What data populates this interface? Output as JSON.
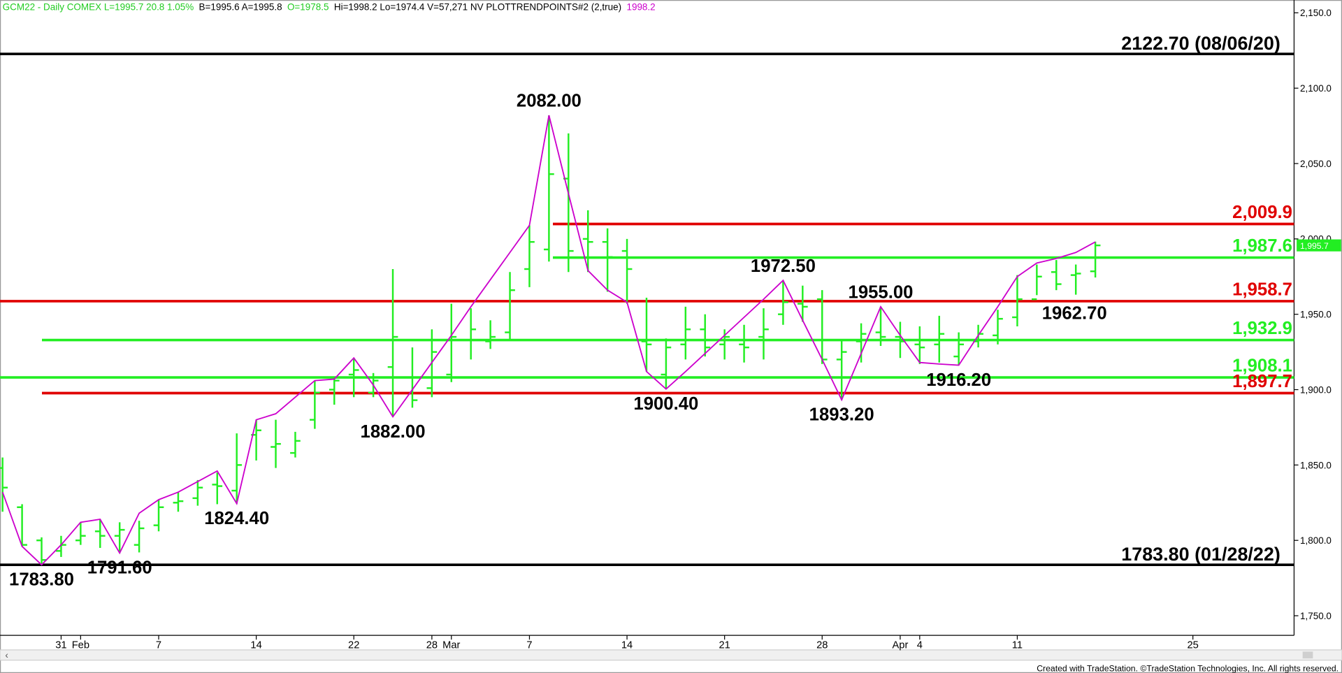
{
  "chart_data": {
    "type": "ohlc",
    "header": [
      {
        "text": "GCM22 - Daily  COMEX  L=1995.7  20.8  1.05%",
        "color": "#22cc22"
      },
      {
        "text": "B=1995.6  A=1995.8",
        "color": "#000000"
      },
      {
        "text": "O=1978.5",
        "color": "#22cc22"
      },
      {
        "text": "Hi=1998.2  Lo=1974.4  V=57,271  NV  PLOTTRENDPOINTS#2 (2,true)",
        "color": "#000000"
      },
      {
        "text": "1998.2",
        "color": "#cc00cc"
      }
    ],
    "footer": "Created with TradeStation. ©TradeStation Technologies, Inc. All rights reserved.",
    "categories": [
      null,
      null,
      null,
      "31",
      "Feb",
      null,
      null,
      null,
      "7",
      null,
      null,
      null,
      null,
      "14",
      null,
      null,
      null,
      null,
      "22",
      null,
      null,
      null,
      "28",
      "Mar",
      null,
      null,
      null,
      "7",
      null,
      null,
      null,
      null,
      "14",
      null,
      null,
      null,
      null,
      "21",
      null,
      null,
      null,
      null,
      "28",
      null,
      null,
      null,
      "Apr",
      "4",
      null,
      null,
      null,
      null,
      "11",
      null,
      null,
      null,
      null,
      null,
      null,
      null,
      null,
      "25"
    ],
    "color": "#22ee22",
    "open": [
      1848,
      1822,
      1800,
      1793,
      1800,
      1806,
      1803,
      1797,
      1810,
      1825,
      1828,
      1837,
      1833,
      1870,
      1862,
      1858,
      1880,
      1900,
      1910,
      1898,
      1915,
      1908,
      1901,
      1910,
      1933,
      1932,
      1938,
      1980,
      1993,
      2040,
      2000,
      1998,
      1992,
      1932,
      1910,
      1930,
      1940,
      1930,
      1930,
      1935,
      1950,
      1957,
      1960,
      1920,
      1932,
      1938,
      1935,
      1930,
      1930,
      1922,
      1932,
      1936,
      1948,
      1960,
      1978,
      1976,
      1978.5,
      null,
      null,
      null,
      null,
      null
    ],
    "high": [
      1855,
      1824,
      1802,
      1803,
      1812,
      1814,
      1812,
      1813,
      1827,
      1832,
      1840,
      1845,
      1871,
      1880,
      1880,
      1872,
      1906,
      1908,
      1921,
      1911,
      1980,
      1928,
      1940,
      1957,
      1954,
      1946,
      1978,
      2009,
      2082,
      2070,
      2019,
      2007,
      2000,
      1961,
      1934,
      1955,
      1950,
      1940,
      1943,
      1954,
      1972.5,
      1969,
      1966,
      1933,
      1944,
      1955,
      1945,
      1942,
      1949,
      1938,
      1943,
      1953,
      1976,
      1983,
      1986,
      1983,
      1998.2,
      null,
      null,
      null,
      null,
      null
    ],
    "low": [
      1819,
      1796,
      1783.8,
      1789,
      1797,
      1795,
      1791.6,
      1792,
      1806,
      1819,
      1823,
      1824,
      1824.4,
      1853,
      1848,
      1855,
      1874,
      1890,
      1895,
      1895,
      1882,
      1888,
      1895,
      1905,
      1920,
      1927,
      1933,
      1968,
      1985,
      1978,
      1978,
      1965,
      1957,
      1912,
      1900.4,
      1920,
      1922,
      1920,
      1918,
      1920,
      1943,
      1945,
      1917,
      1893.2,
      1918,
      1929,
      1921,
      1917,
      1918,
      1916.2,
      1928,
      1930,
      1942,
      1962.7,
      1966,
      1963,
      1974.4,
      null,
      null,
      null,
      null,
      null
    ],
    "low_value_labels": [
      null,
      null,
      null,
      null,
      null,
      null,
      null,
      null,
      null,
      null,
      null,
      null,
      null,
      null,
      null,
      null,
      null,
      null,
      null,
      null,
      null,
      null,
      null,
      null,
      null,
      null,
      null,
      null,
      null,
      null,
      null,
      null,
      null,
      null,
      null,
      null,
      null,
      null,
      null,
      null,
      null,
      null,
      null,
      null,
      null,
      null,
      null,
      null,
      null,
      null,
      null,
      null,
      null,
      "1962.70",
      null,
      null,
      null,
      null,
      null,
      null,
      null,
      null
    ],
    "close": [
      1835,
      1797,
      1787,
      1797,
      1803,
      1803,
      1807,
      1808,
      1822,
      1826,
      1835,
      1836,
      1850,
      1873,
      1864,
      1866,
      1898,
      1906,
      1913,
      1906,
      1935,
      1893,
      1925,
      1935,
      1940,
      1935,
      1966,
      1998,
      2043,
      1992,
      1998,
      1988,
      1980,
      1930,
      1928,
      1940,
      1928,
      1935,
      1928,
      1940,
      1958,
      1955,
      1920,
      1925,
      1937,
      1935,
      1932,
      1928,
      1937,
      1930,
      1937,
      1947,
      1960,
      1975,
      1970,
      1977,
      1995.7,
      null,
      null,
      null,
      null,
      null
    ],
    "pivot": {
      "color": "#cc00cc",
      "values": [
        1832,
        1796,
        1783.8,
        1797,
        1812,
        1814,
        1791.6,
        1818,
        1827,
        1832,
        1839,
        1846,
        1824.4,
        1880,
        1884,
        1895,
        1906,
        1907,
        1921,
        1903,
        1882,
        1900,
        1918,
        1936,
        1955,
        1973,
        1991,
        2009,
        2082,
        2030,
        1979,
        1966,
        1958,
        1912,
        1900.4,
        1912,
        1924,
        1936,
        1948,
        1960,
        1972.5,
        1946,
        1920,
        1893.2,
        1924,
        1955,
        1936,
        1918,
        1917,
        1916.2,
        1936,
        1955,
        1975,
        1984,
        1987,
        1991,
        1998,
        null,
        null,
        null,
        null,
        null
      ],
      "value_labels": [
        null,
        null,
        "1783.80",
        null,
        null,
        null,
        "1791.60",
        null,
        null,
        null,
        null,
        null,
        "1824.40",
        null,
        null,
        null,
        null,
        null,
        null,
        null,
        "1882.00",
        null,
        null,
        null,
        null,
        null,
        null,
        null,
        "2082.00",
        null,
        null,
        null,
        null,
        null,
        "1900.40",
        null,
        null,
        null,
        null,
        null,
        "1972.50",
        null,
        null,
        "1893.20",
        null,
        "1955.00",
        null,
        null,
        null,
        "1916.20",
        null,
        null,
        null,
        null,
        null,
        null,
        null,
        null,
        null,
        null,
        null,
        null
      ]
    },
    "levels": [
      {
        "label": "2122.70 (08/06/20)",
        "value": 2122.7,
        "color": "#000000"
      },
      {
        "label": "2,009.9",
        "value": 2009.9,
        "color": "#e00000"
      },
      {
        "label": "1,987.6",
        "value": 1987.6,
        "color": "#22ee22"
      },
      {
        "label": "1,958.7",
        "value": 1958.7,
        "color": "#e00000"
      },
      {
        "label": "1,932.9",
        "value": 1932.9,
        "color": "#22ee22"
      },
      {
        "label": "1,908.1",
        "value": 1908.1,
        "color": "#22ee22"
      },
      {
        "label": "1,897.7",
        "value": 1897.7,
        "color": "#e00000"
      },
      {
        "label": "1783.80 (01/28/22)",
        "value": 1783.8,
        "color": "#000000"
      }
    ],
    "price_marker": {
      "value": 1995.7,
      "label": "1,995.7"
    },
    "ylim": [
      1737,
      2158.5
    ],
    "yticks": [
      {
        "value": 1750,
        "label": "1,750.0"
      },
      {
        "value": 1800,
        "label": "1,800.0"
      },
      {
        "value": 1850,
        "label": "1,850.0"
      },
      {
        "value": 1900,
        "label": "1,900.0"
      },
      {
        "value": 1950,
        "label": "1,950.0"
      },
      {
        "value": 2000,
        "label": "2,000.0"
      },
      {
        "value": 2050,
        "label": "2,050.0"
      },
      {
        "value": 2100,
        "label": "2,100.0"
      },
      {
        "value": 2150,
        "label": "2,150.0"
      }
    ]
  }
}
